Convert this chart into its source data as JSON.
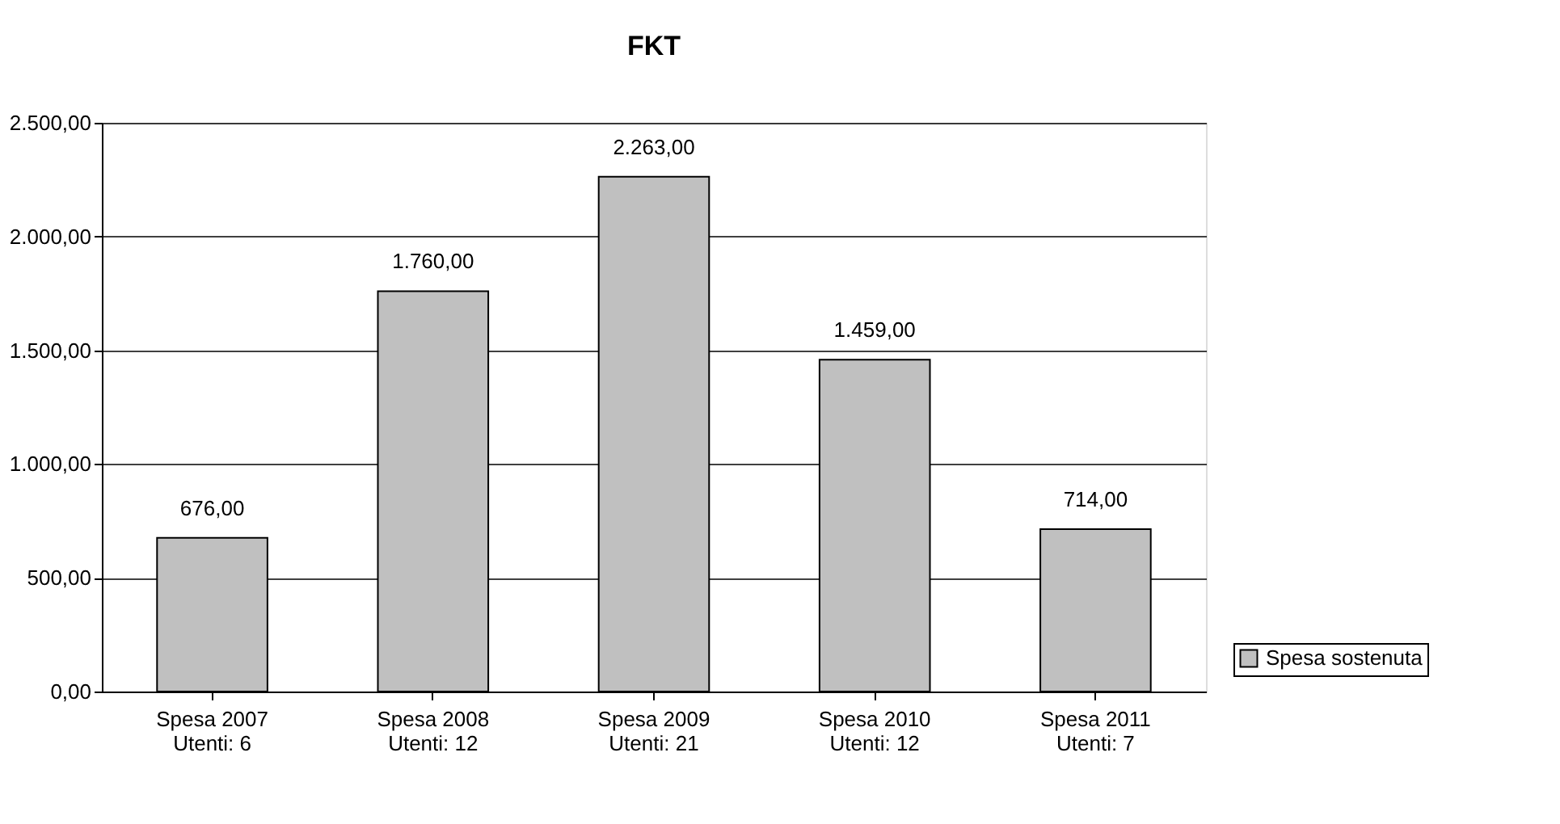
{
  "chart_data": {
    "type": "bar",
    "title": "FKT",
    "categories": [
      "Spesa 2007\nUtenti: 6",
      "Spesa 2008\nUtenti: 12",
      "Spesa 2009\nUtenti: 21",
      "Spesa 2010\nUtenti: 12",
      "Spesa 2011\nUtenti: 7"
    ],
    "series": [
      {
        "name": "Spesa sostenuta",
        "color": "#c0c0c0",
        "values": [
          676,
          1760,
          2263,
          1459,
          714
        ],
        "value_labels": [
          "676,00",
          "1.760,00",
          "2.263,00",
          "1.459,00",
          "714,00"
        ]
      }
    ],
    "ylim": [
      0,
      2500
    ],
    "yticks": [
      {
        "value": 0,
        "label": "0,00"
      },
      {
        "value": 500,
        "label": "500,00"
      },
      {
        "value": 1000,
        "label": "1.000,00"
      },
      {
        "value": 1500,
        "label": "1.500,00"
      },
      {
        "value": 2000,
        "label": "2.000,00"
      },
      {
        "value": 2500,
        "label": "2.500,00"
      }
    ],
    "grid": "y",
    "legend": "right"
  }
}
